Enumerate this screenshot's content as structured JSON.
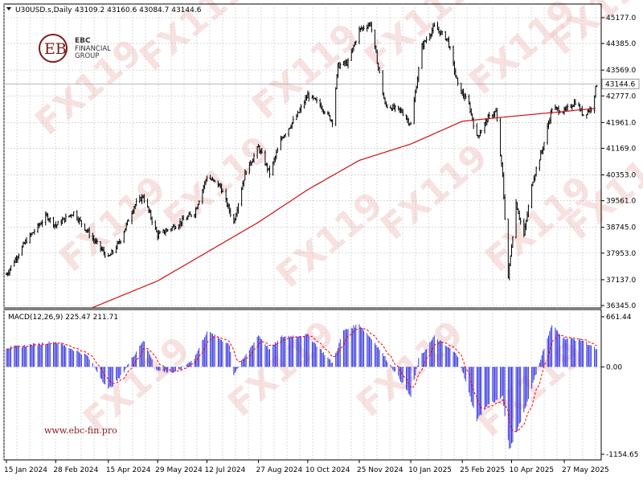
{
  "chart_data": [
    {
      "type": "candlestick",
      "title": "U30USD.s,Daily",
      "ohlc_readout": "43109.2 43160.6 43084.7 43144.6",
      "last_price": "43144.6",
      "y_ticks": [
        "45177.0",
        "44385.0",
        "43569.0",
        "42777.0",
        "41961.0",
        "41169.0",
        "40353.0",
        "39561.0",
        "38745.0",
        "37953.0",
        "37137.0",
        "36345.0"
      ],
      "ylim": [
        36345,
        45177
      ],
      "x_ticks": [
        "15 Jan 2024",
        "28 Feb 2024",
        "15 Apr 2024",
        "29 May 2024",
        "12 Jul 2024",
        "27 Aug 2024",
        "10 Oct 2024",
        "25 Nov 2024",
        "10 Jan 2025",
        "25 Feb 2025",
        "10 Apr 2025",
        "27 May 2025"
      ],
      "price_anchors": [
        [
          "15 Jan 2024",
          37300
        ],
        [
          "01 Feb 2024",
          38300
        ],
        [
          "20 Feb 2024",
          39100
        ],
        [
          "28 Feb 2024",
          38800
        ],
        [
          "15 Mar 2024",
          39200
        ],
        [
          "01 Apr 2024",
          38400
        ],
        [
          "15 Apr 2024",
          37800
        ],
        [
          "25 Apr 2024",
          38300
        ],
        [
          "08 May 2024",
          39400
        ],
        [
          "16 May 2024",
          39700
        ],
        [
          "29 May 2024",
          38500
        ],
        [
          "14 Jun 2024",
          38800
        ],
        [
          "01 Jul 2024",
          39200
        ],
        [
          "12 Jul 2024",
          40300
        ],
        [
          "24 Jul 2024",
          40000
        ],
        [
          "05 Aug 2024",
          38900
        ],
        [
          "15 Aug 2024",
          40400
        ],
        [
          "27 Aug 2024",
          41200
        ],
        [
          "06 Sep 2024",
          40400
        ],
        [
          "17 Sep 2024",
          41500
        ],
        [
          "01 Oct 2024",
          42200
        ],
        [
          "10 Oct 2024",
          42800
        ],
        [
          "21 Oct 2024",
          42500
        ],
        [
          "01 Nov 2024",
          42000
        ],
        [
          "06 Nov 2024",
          43700
        ],
        [
          "15 Nov 2024",
          43800
        ],
        [
          "25 Nov 2024",
          44800
        ],
        [
          "05 Dec 2024",
          45000
        ],
        [
          "18 Dec 2024",
          42500
        ],
        [
          "02 Jan 2025",
          42300
        ],
        [
          "10 Jan 2025",
          41900
        ],
        [
          "20 Jan 2025",
          44300
        ],
        [
          "31 Jan 2025",
          44900
        ],
        [
          "12 Feb 2025",
          44500
        ],
        [
          "21 Feb 2025",
          43100
        ],
        [
          "03 Mar 2025",
          42500
        ],
        [
          "10 Mar 2025",
          41500
        ],
        [
          "20 Mar 2025",
          42100
        ],
        [
          "27 Mar 2025",
          42300
        ],
        [
          "02 Apr 2025",
          40300
        ],
        [
          "07 Apr 2025",
          37200
        ],
        [
          "14 Apr 2025",
          39500
        ],
        [
          "21 Apr 2025",
          38500
        ],
        [
          "29 Apr 2025",
          40200
        ],
        [
          "08 May 2025",
          41200
        ],
        [
          "16 May 2025",
          42400
        ],
        [
          "27 May 2025",
          42300
        ],
        [
          "06 Jun 2025",
          42600
        ],
        [
          "13 Jun 2025",
          42200
        ],
        [
          "20 Jun 2025",
          42400
        ],
        [
          "25 Jun 2025",
          43144.6
        ]
      ],
      "ma_anchors": [
        [
          "15 Jan 2024",
          35200
        ],
        [
          "29 May 2024",
          37100
        ],
        [
          "27 Aug 2024",
          38900
        ],
        [
          "10 Oct 2024",
          39900
        ],
        [
          "25 Nov 2024",
          40800
        ],
        [
          "10 Jan 2025",
          41300
        ],
        [
          "25 Feb 2025",
          42000
        ],
        [
          "10 Apr 2025",
          42150
        ],
        [
          "27 May 2025",
          42300
        ],
        [
          "25 Jun 2025",
          42400
        ]
      ],
      "colors": {
        "candle": "#000000",
        "ma": "#d01010",
        "grid": "#c0c0c0"
      }
    },
    {
      "type": "histogram",
      "title": "MACD(12,26,9) 225.47 211.71",
      "y_ticks": [
        "661.44",
        "0.00",
        "-1154.65"
      ],
      "ylim": [
        -1154.65,
        661.44
      ],
      "macd_anchors": [
        [
          "15 Jan 2024",
          250
        ],
        [
          "28 Feb 2024",
          330
        ],
        [
          "27 Mar 2024",
          150
        ],
        [
          "15 Apr 2024",
          -300
        ],
        [
          "25 Apr 2024",
          -150
        ],
        [
          "16 May 2024",
          350
        ],
        [
          "29 May 2024",
          -50
        ],
        [
          "14 Jun 2024",
          -80
        ],
        [
          "01 Jul 2024",
          120
        ],
        [
          "12 Jul 2024",
          470
        ],
        [
          "01 Aug 2024",
          300
        ],
        [
          "05 Aug 2024",
          -100
        ],
        [
          "27 Aug 2024",
          420
        ],
        [
          "06 Sep 2024",
          230
        ],
        [
          "17 Sep 2024",
          400
        ],
        [
          "10 Oct 2024",
          420
        ],
        [
          "01 Nov 2024",
          50
        ],
        [
          "11 Nov 2024",
          480
        ],
        [
          "25 Nov 2024",
          560
        ],
        [
          "10 Dec 2024",
          300
        ],
        [
          "02 Jan 2025",
          -200
        ],
        [
          "10 Jan 2025",
          -400
        ],
        [
          "17 Jan 2025",
          100
        ],
        [
          "31 Jan 2025",
          400
        ],
        [
          "21 Feb 2025",
          150
        ],
        [
          "10 Mar 2025",
          -700
        ],
        [
          "20 Mar 2025",
          -500
        ],
        [
          "02 Apr 2025",
          -400
        ],
        [
          "08 Apr 2025",
          -1100
        ],
        [
          "21 Apr 2025",
          -600
        ],
        [
          "08 May 2025",
          200
        ],
        [
          "16 May 2025",
          550
        ],
        [
          "27 May 2025",
          380
        ],
        [
          "13 Jun 2025",
          350
        ],
        [
          "25 Jun 2025",
          225.47
        ]
      ],
      "colors": {
        "bars": "#3a3adf",
        "signal": "#ff0000"
      }
    }
  ],
  "branding": {
    "logo_line1": "EBC",
    "logo_line2": "FINANCIAL",
    "logo_line3": "GROUP",
    "website": "www.ebc-fin.pro",
    "watermark": "FX119"
  }
}
